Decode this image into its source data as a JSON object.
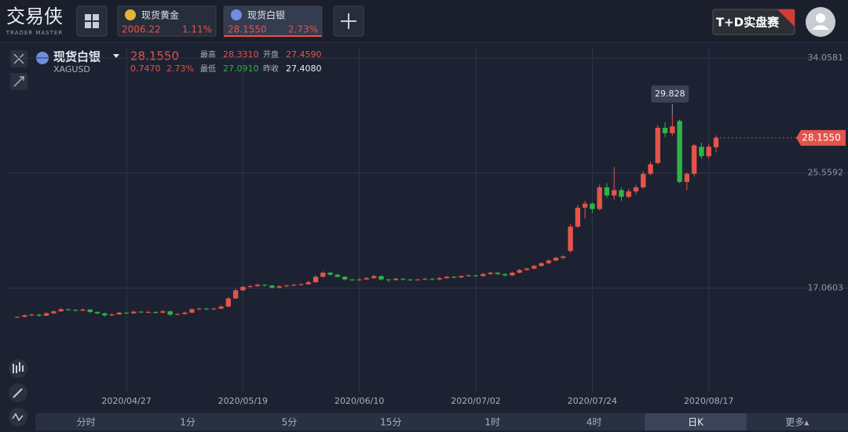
{
  "header": {
    "logo": "交易侠",
    "logo_sub": "TRADER MASTER",
    "tabs": [
      {
        "name": "现货黄金",
        "price": "2006.22",
        "change": "1.11%"
      },
      {
        "name": "现货白银",
        "price": "28.1550",
        "change": "2.73%"
      }
    ],
    "badge": "T+D实盘赛"
  },
  "quote": {
    "name": "现货白银",
    "code": "XAGUSD",
    "price": "28.1550",
    "change": "0.7470",
    "change_pct": "2.73%",
    "stats": [
      {
        "label": "最高",
        "value": "28.3310"
      },
      {
        "label": "开盘",
        "value": "27.4590"
      },
      {
        "label": "最低",
        "value": "27.0910"
      },
      {
        "label": "昨收",
        "value": "27.4080"
      }
    ]
  },
  "chart": {
    "type": "candlestick",
    "up_color": "#e5534b",
    "down_color": "#2fb344",
    "ylim": [
      9.39,
      34.86
    ],
    "yticks": [
      34.0581,
      25.5592,
      17.0603
    ],
    "grid": true,
    "categories": [
      null,
      null,
      null,
      null,
      null,
      null,
      null,
      null,
      null,
      null,
      null,
      null,
      null,
      null,
      null,
      "2020/04/27",
      null,
      null,
      null,
      null,
      null,
      null,
      null,
      null,
      null,
      null,
      null,
      null,
      null,
      null,
      null,
      "2020/05/19",
      null,
      null,
      null,
      null,
      null,
      null,
      null,
      null,
      null,
      null,
      null,
      null,
      null,
      null,
      null,
      "2020/06/10",
      null,
      null,
      null,
      null,
      null,
      null,
      null,
      null,
      null,
      null,
      null,
      null,
      null,
      null,
      null,
      "2020/07/02",
      null,
      null,
      null,
      null,
      null,
      null,
      null,
      null,
      null,
      null,
      null,
      null,
      null,
      null,
      null,
      "2020/07/24",
      null,
      null,
      null,
      null,
      null,
      null,
      null,
      null,
      null,
      null,
      null,
      null,
      null,
      null,
      null,
      "2020/08/17",
      null
    ],
    "candles": [
      [
        14.9,
        15.0,
        14.85,
        14.94
      ],
      [
        14.94,
        15.12,
        14.9,
        15.05
      ],
      [
        15.05,
        15.18,
        15.0,
        15.1
      ],
      [
        15.1,
        15.15,
        14.95,
        15.02
      ],
      [
        15.02,
        15.28,
        15.0,
        15.2
      ],
      [
        15.2,
        15.42,
        15.15,
        15.35
      ],
      [
        15.35,
        15.6,
        15.3,
        15.5
      ],
      [
        15.5,
        15.55,
        15.38,
        15.45
      ],
      [
        15.45,
        15.5,
        15.33,
        15.4
      ],
      [
        15.4,
        15.56,
        15.36,
        15.48
      ],
      [
        15.48,
        15.5,
        15.22,
        15.3
      ],
      [
        15.3,
        15.35,
        15.12,
        15.2
      ],
      [
        15.2,
        15.24,
        14.95,
        15.05
      ],
      [
        15.05,
        15.2,
        15.0,
        15.12
      ],
      [
        15.12,
        15.32,
        15.08,
        15.25
      ],
      [
        15.25,
        15.3,
        15.12,
        15.2
      ],
      [
        15.2,
        15.4,
        15.16,
        15.32
      ],
      [
        15.32,
        15.36,
        15.2,
        15.28
      ],
      [
        15.28,
        15.38,
        15.22,
        15.3
      ],
      [
        15.3,
        15.34,
        15.18,
        15.25
      ],
      [
        15.25,
        15.45,
        15.2,
        15.35
      ],
      [
        15.35,
        15.38,
        15.02,
        15.1
      ],
      [
        15.1,
        15.22,
        15.04,
        15.15
      ],
      [
        15.15,
        15.32,
        15.1,
        15.25
      ],
      [
        15.25,
        15.58,
        15.2,
        15.5
      ],
      [
        15.5,
        15.62,
        15.44,
        15.55
      ],
      [
        15.55,
        15.6,
        15.42,
        15.5
      ],
      [
        15.5,
        15.62,
        15.45,
        15.55
      ],
      [
        15.55,
        15.8,
        15.5,
        15.7
      ],
      [
        15.7,
        16.4,
        15.65,
        16.3
      ],
      [
        16.3,
        17.0,
        16.25,
        16.9
      ],
      [
        16.9,
        17.25,
        16.85,
        17.15
      ],
      [
        17.15,
        17.3,
        17.05,
        17.2
      ],
      [
        17.2,
        17.4,
        17.15,
        17.3
      ],
      [
        17.3,
        17.35,
        17.18,
        17.25
      ],
      [
        17.25,
        17.3,
        17.02,
        17.1
      ],
      [
        17.1,
        17.28,
        17.05,
        17.2
      ],
      [
        17.2,
        17.32,
        17.12,
        17.25
      ],
      [
        17.25,
        17.38,
        17.18,
        17.3
      ],
      [
        17.3,
        17.42,
        17.24,
        17.35
      ],
      [
        17.35,
        17.6,
        17.3,
        17.5
      ],
      [
        17.5,
        18.0,
        17.45,
        17.9
      ],
      [
        17.9,
        18.3,
        17.85,
        18.2
      ],
      [
        18.2,
        18.25,
        18.0,
        18.05
      ],
      [
        18.05,
        18.1,
        17.85,
        17.9
      ],
      [
        17.9,
        17.95,
        17.62,
        17.7
      ],
      [
        17.7,
        17.75,
        17.58,
        17.65
      ],
      [
        17.65,
        17.78,
        17.6,
        17.7
      ],
      [
        17.7,
        17.88,
        17.65,
        17.8
      ],
      [
        17.8,
        18.05,
        17.75,
        17.95
      ],
      [
        17.95,
        18.0,
        17.62,
        17.7
      ],
      [
        17.7,
        17.75,
        17.5,
        17.65
      ],
      [
        17.65,
        17.82,
        17.6,
        17.75
      ],
      [
        17.75,
        17.8,
        17.62,
        17.7
      ],
      [
        17.7,
        17.74,
        17.58,
        17.65
      ],
      [
        17.65,
        17.78,
        17.6,
        17.7
      ],
      [
        17.7,
        17.82,
        17.65,
        17.75
      ],
      [
        17.75,
        17.8,
        17.62,
        17.7
      ],
      [
        17.7,
        17.88,
        17.65,
        17.8
      ],
      [
        17.8,
        17.98,
        17.75,
        17.9
      ],
      [
        17.9,
        17.95,
        17.78,
        17.85
      ],
      [
        17.85,
        18.02,
        17.8,
        17.95
      ],
      [
        17.95,
        18.08,
        17.9,
        18.0
      ],
      [
        18.0,
        18.05,
        17.88,
        17.95
      ],
      [
        17.95,
        18.18,
        17.9,
        18.1
      ],
      [
        18.1,
        18.28,
        18.05,
        18.2
      ],
      [
        18.2,
        18.25,
        18.02,
        18.1
      ],
      [
        18.1,
        18.15,
        17.92,
        18.0
      ],
      [
        18.0,
        18.28,
        17.95,
        18.2
      ],
      [
        18.2,
        18.48,
        18.15,
        18.4
      ],
      [
        18.4,
        18.58,
        18.35,
        18.5
      ],
      [
        18.5,
        18.78,
        18.45,
        18.7
      ],
      [
        18.7,
        18.98,
        18.65,
        18.9
      ],
      [
        18.9,
        19.18,
        18.85,
        19.1
      ],
      [
        19.1,
        19.38,
        19.05,
        19.3
      ],
      [
        19.3,
        19.5,
        19.2,
        19.4
      ],
      [
        19.8,
        21.8,
        19.7,
        21.6
      ],
      [
        21.6,
        23.2,
        21.5,
        23.0
      ],
      [
        23.0,
        23.5,
        22.2,
        23.3
      ],
      [
        23.3,
        23.4,
        22.6,
        22.9
      ],
      [
        22.9,
        24.7,
        22.8,
        24.5
      ],
      [
        24.5,
        24.8,
        23.7,
        23.9
      ],
      [
        23.9,
        26.0,
        23.6,
        24.3
      ],
      [
        24.3,
        24.5,
        23.5,
        23.8
      ],
      [
        23.8,
        24.4,
        23.7,
        24.2
      ],
      [
        24.2,
        24.7,
        24.0,
        24.5
      ],
      [
        24.5,
        25.7,
        24.4,
        25.5
      ],
      [
        25.5,
        26.4,
        25.4,
        26.2
      ],
      [
        26.3,
        29.1,
        26.2,
        28.9
      ],
      [
        28.9,
        29.3,
        28.2,
        28.5
      ],
      [
        28.5,
        29.828,
        28.3,
        29.0
      ],
      [
        29.4,
        29.5,
        24.8,
        24.9
      ],
      [
        24.9,
        25.6,
        24.3,
        25.5
      ],
      [
        25.5,
        27.7,
        25.3,
        27.6
      ],
      [
        27.5,
        27.8,
        26.6,
        26.8
      ],
      [
        26.8,
        27.7,
        26.6,
        27.5
      ],
      [
        27.459,
        28.331,
        27.091,
        28.155
      ]
    ]
  },
  "periods": [
    "分时",
    "1分",
    "5分",
    "15分",
    "1时",
    "4时",
    "日K",
    "更多▴"
  ]
}
